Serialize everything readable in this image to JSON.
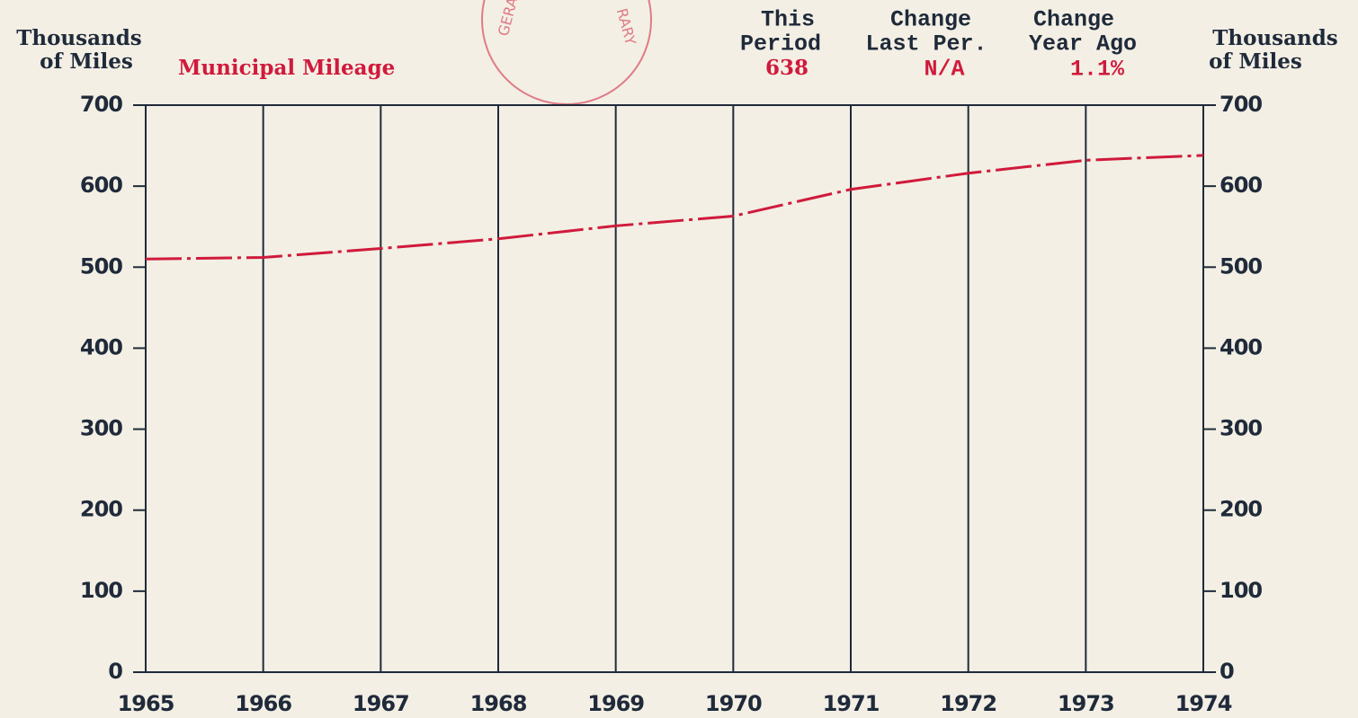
{
  "stamp": [
    "GERALD",
    "RARY"
  ],
  "summary": {
    "columns": [
      {
        "header": [
          "This",
          "Period"
        ],
        "value": 638
      },
      {
        "header": [
          "Change",
          "Last Per."
        ],
        "value": "N/A"
      },
      {
        "header": [
          "Change",
          "Year Ago"
        ],
        "value": "1.1%"
      }
    ]
  },
  "chart_data": {
    "type": "line",
    "ylabel": [
      "Thousands",
      "of Miles"
    ],
    "y2label": [
      "Thousands",
      "of Miles"
    ],
    "x": [
      1965,
      1966,
      1967,
      1968,
      1969,
      1970,
      1971,
      1972,
      1973,
      1974
    ],
    "series": [
      {
        "name": "Municipal Mileage",
        "color": "#d01a3c",
        "values": [
          510,
          512,
          523,
          535,
          551,
          563,
          596,
          616,
          632,
          638
        ]
      }
    ],
    "xlim": [
      1965,
      1974
    ],
    "xticks": [
      1965,
      1966,
      1967,
      1968,
      1969,
      1970,
      1971,
      1972,
      1973,
      1974
    ],
    "ylim": [
      0,
      700
    ],
    "yticks": [
      0,
      100,
      200,
      300,
      400,
      500,
      600,
      700
    ],
    "y2lim": [
      0,
      700
    ],
    "y2ticks": [
      0,
      100,
      200,
      300,
      400,
      500,
      600,
      700
    ],
    "grid": "x"
  }
}
